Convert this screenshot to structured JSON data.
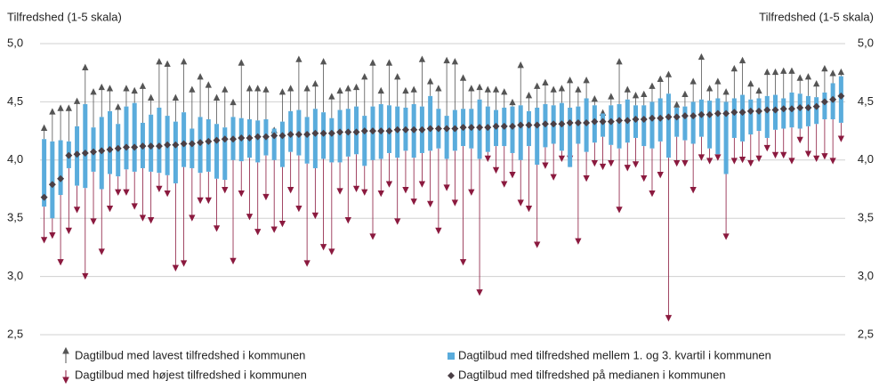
{
  "chart_data": {
    "type": "boxplot",
    "y_label": "Tilfredshed (1-5 skala)",
    "y2_label": "Tilfredshed (1-5 skala)",
    "ylim": [
      2.5,
      5.0
    ],
    "yticks": [
      {
        "value": 2.5,
        "label": "2,5"
      },
      {
        "value": 3.0,
        "label": "3,0"
      },
      {
        "value": 3.5,
        "label": "3,5"
      },
      {
        "value": 4.0,
        "label": "4,0"
      },
      {
        "value": 4.5,
        "label": "4,5"
      },
      {
        "value": 5.0,
        "label": "5,0"
      }
    ],
    "y2lim": [
      2.5,
      5.0
    ],
    "y2ticks": [
      {
        "value": 2.5,
        "label": "2,5"
      },
      {
        "value": 3.0,
        "label": "3,0"
      },
      {
        "value": 3.5,
        "label": "3,5"
      },
      {
        "value": 4.0,
        "label": "4,0"
      },
      {
        "value": 4.5,
        "label": "4,5"
      },
      {
        "value": 5.0,
        "label": "5,0"
      }
    ],
    "grid": true,
    "series": [
      {
        "name": "Dagtilbud med lavest tilfredshed i kommunen",
        "color": "#555555",
        "values": [
          4.3,
          4.44,
          4.47,
          4.47,
          4.53,
          4.82,
          4.61,
          4.65,
          4.64,
          4.48,
          4.64,
          4.62,
          4.66,
          4.56,
          4.87,
          4.85,
          4.56,
          4.87,
          4.63,
          4.74,
          4.67,
          4.56,
          4.63,
          4.52,
          4.86,
          4.64,
          4.64,
          4.63,
          4.28,
          4.61,
          4.64,
          4.89,
          4.64,
          4.68,
          4.87,
          4.57,
          4.62,
          4.64,
          4.65,
          4.74,
          4.86,
          4.62,
          4.86,
          4.74,
          4.62,
          4.63,
          4.89,
          4.7,
          4.64,
          4.88,
          4.87,
          4.73,
          4.64,
          4.65,
          4.63,
          4.63,
          4.61,
          4.52,
          4.84,
          4.58,
          4.66,
          4.69,
          4.63,
          4.64,
          4.71,
          4.63,
          4.71,
          4.55,
          4.43,
          4.57,
          4.87,
          4.63,
          4.58,
          4.59,
          4.66,
          4.72,
          4.76,
          4.5,
          4.59,
          4.7,
          4.91,
          4.64,
          4.7,
          4.61,
          4.81,
          4.88,
          4.68,
          4.62,
          4.78,
          4.78,
          4.79,
          4.79,
          4.73,
          4.74,
          4.68,
          4.81,
          4.77,
          4.78
        ]
      },
      {
        "name": "Dagtilbud med højest tilfredshed i kommunen",
        "color": "#8b1a3f",
        "values": [
          3.29,
          3.33,
          3.1,
          3.37,
          3.55,
          2.98,
          3.45,
          3.19,
          3.56,
          3.7,
          3.7,
          3.58,
          3.48,
          3.46,
          3.73,
          3.69,
          3.05,
          3.09,
          3.48,
          3.63,
          3.63,
          3.39,
          3.72,
          3.11,
          3.69,
          3.49,
          3.36,
          3.66,
          3.38,
          3.43,
          3.72,
          3.56,
          3.09,
          3.5,
          3.23,
          3.19,
          3.71,
          3.46,
          3.73,
          3.7,
          3.32,
          3.69,
          3.77,
          3.45,
          3.72,
          3.62,
          3.77,
          3.6,
          3.37,
          3.74,
          3.61,
          3.1,
          3.7,
          2.84,
          3.99,
          3.89,
          3.77,
          3.85,
          3.61,
          3.56,
          3.25,
          3.93,
          3.83,
          3.99,
          3.99,
          3.28,
          3.82,
          3.95,
          3.92,
          3.95,
          3.55,
          3.91,
          3.94,
          3.82,
          3.69,
          3.85,
          2.62,
          3.95,
          3.95,
          3.72,
          4.0,
          3.97,
          4.0,
          3.32,
          3.97,
          3.98,
          3.95,
          3.99,
          4.08,
          4.02,
          4.02,
          3.97,
          4.15,
          4.03,
          3.99,
          4.01,
          3.97,
          4.16
        ]
      },
      {
        "name": "Dagtilbud med tilfredshed mellem 1. og 3. kvartil i kommunen",
        "color": "#5aacdc",
        "q1": [
          3.6,
          3.5,
          3.7,
          3.93,
          3.78,
          3.76,
          3.9,
          3.75,
          3.88,
          3.86,
          3.92,
          3.9,
          3.93,
          3.9,
          3.89,
          3.87,
          3.8,
          3.94,
          3.93,
          3.89,
          3.9,
          3.84,
          3.83,
          4.0,
          3.99,
          4.02,
          3.98,
          4.04,
          4.0,
          3.94,
          4.07,
          4.04,
          3.97,
          3.93,
          4.01,
          3.98,
          3.98,
          4.03,
          4.05,
          3.95,
          4.0,
          4.01,
          4.06,
          4.02,
          4.08,
          4.02,
          4.06,
          4.08,
          4.1,
          4.01,
          4.08,
          4.12,
          4.1,
          4.01,
          4.07,
          4.12,
          4.12,
          4.06,
          4.0,
          4.12,
          3.96,
          4.11,
          4.14,
          4.08,
          3.94,
          4.14,
          4.07,
          4.15,
          4.2,
          4.13,
          4.1,
          4.15,
          4.19,
          4.12,
          4.1,
          4.16,
          4.02,
          4.2,
          4.17,
          4.14,
          4.2,
          4.1,
          4.05,
          3.88,
          4.19,
          4.16,
          4.22,
          4.25,
          4.19,
          4.26,
          4.27,
          4.28,
          4.27,
          4.29,
          4.31,
          4.35,
          4.35,
          4.32
        ],
        "q3": [
          4.18,
          4.16,
          4.17,
          4.16,
          4.29,
          4.48,
          4.28,
          4.37,
          4.42,
          4.31,
          4.46,
          4.49,
          4.32,
          4.39,
          4.45,
          4.38,
          4.33,
          4.41,
          4.27,
          4.37,
          4.35,
          4.31,
          4.28,
          4.37,
          4.36,
          4.35,
          4.34,
          4.35,
          4.27,
          4.33,
          4.42,
          4.43,
          4.37,
          4.44,
          4.41,
          4.36,
          4.43,
          4.44,
          4.46,
          4.38,
          4.46,
          4.48,
          4.47,
          4.46,
          4.45,
          4.48,
          4.46,
          4.55,
          4.44,
          4.38,
          4.43,
          4.44,
          4.44,
          4.52,
          4.46,
          4.43,
          4.45,
          4.46,
          4.47,
          4.42,
          4.45,
          4.48,
          4.47,
          4.49,
          4.45,
          4.46,
          4.53,
          4.47,
          4.4,
          4.47,
          4.48,
          4.52,
          4.47,
          4.47,
          4.5,
          4.53,
          4.57,
          4.45,
          4.46,
          4.5,
          4.52,
          4.51,
          4.53,
          4.5,
          4.53,
          4.56,
          4.52,
          4.53,
          4.55,
          4.56,
          4.53,
          4.58,
          4.57,
          4.55,
          4.54,
          4.58,
          4.66,
          4.72
        ]
      },
      {
        "name": "Dagtilbud med tilfredshed på medianen i kommunen",
        "color": "#4a3f45",
        "values": [
          3.68,
          3.79,
          3.84,
          4.04,
          4.05,
          4.06,
          4.07,
          4.08,
          4.09,
          4.1,
          4.11,
          4.11,
          4.12,
          4.12,
          4.12,
          4.13,
          4.13,
          4.14,
          4.14,
          4.15,
          4.16,
          4.17,
          4.18,
          4.18,
          4.19,
          4.19,
          4.2,
          4.2,
          4.21,
          4.21,
          4.22,
          4.22,
          4.22,
          4.23,
          4.23,
          4.23,
          4.24,
          4.24,
          4.24,
          4.25,
          4.25,
          4.25,
          4.25,
          4.26,
          4.26,
          4.26,
          4.26,
          4.27,
          4.27,
          4.27,
          4.27,
          4.28,
          4.28,
          4.28,
          4.28,
          4.29,
          4.29,
          4.29,
          4.3,
          4.3,
          4.3,
          4.31,
          4.31,
          4.31,
          4.32,
          4.32,
          4.32,
          4.33,
          4.33,
          4.33,
          4.34,
          4.34,
          4.35,
          4.35,
          4.36,
          4.36,
          4.37,
          4.37,
          4.38,
          4.38,
          4.39,
          4.39,
          4.4,
          4.4,
          4.41,
          4.41,
          4.42,
          4.42,
          4.43,
          4.43,
          4.44,
          4.44,
          4.45,
          4.45,
          4.46,
          4.5,
          4.52,
          4.55
        ]
      }
    ]
  }
}
